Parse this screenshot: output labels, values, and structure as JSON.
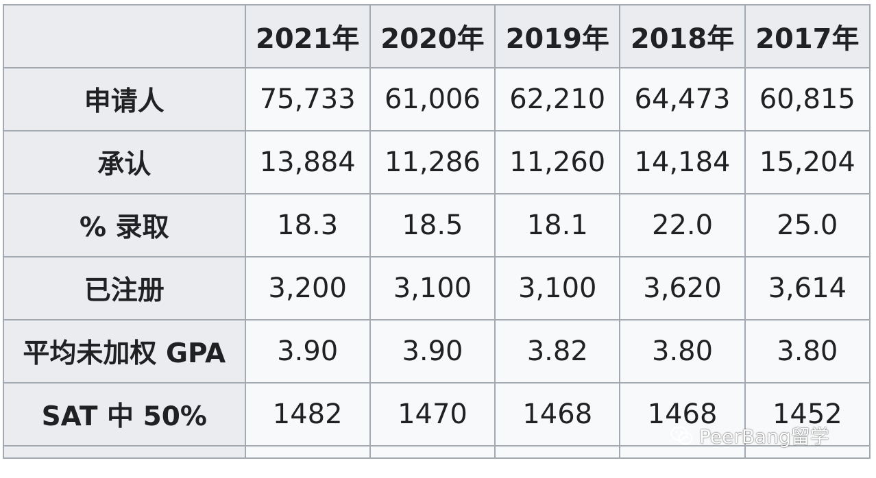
{
  "table": {
    "columns": [
      "2021年",
      "2020年",
      "2019年",
      "2018年",
      "2017年"
    ],
    "rows": [
      {
        "label": "申请人",
        "values": [
          "75,733",
          "61,006",
          "62,210",
          "64,473",
          "60,815"
        ]
      },
      {
        "label": "承认",
        "values": [
          "13,884",
          "11,286",
          "11,260",
          "14,184",
          "15,204"
        ]
      },
      {
        "label": "% 录取",
        "values": [
          "18.3",
          "18.5",
          "18.1",
          "22.0",
          "25.0"
        ]
      },
      {
        "label": "已注册",
        "values": [
          "3,200",
          "3,100",
          "3,100",
          "3,620",
          "3,614"
        ]
      },
      {
        "label": "平均未加权 GPA",
        "values": [
          "3.90",
          "3.90",
          "3.82",
          "3.80",
          "3.80"
        ]
      },
      {
        "label": "SAT 中 50%",
        "values": [
          "1482",
          "1470",
          "1468",
          "1468",
          "1452"
        ]
      }
    ]
  },
  "watermark": {
    "text": "PeerBang留学",
    "icon": "wechat-icon"
  },
  "colors": {
    "header_bg": "#eaecf0",
    "cell_bg": "#f8f9fa",
    "border": "#a2a9b1",
    "text": "#202122"
  }
}
